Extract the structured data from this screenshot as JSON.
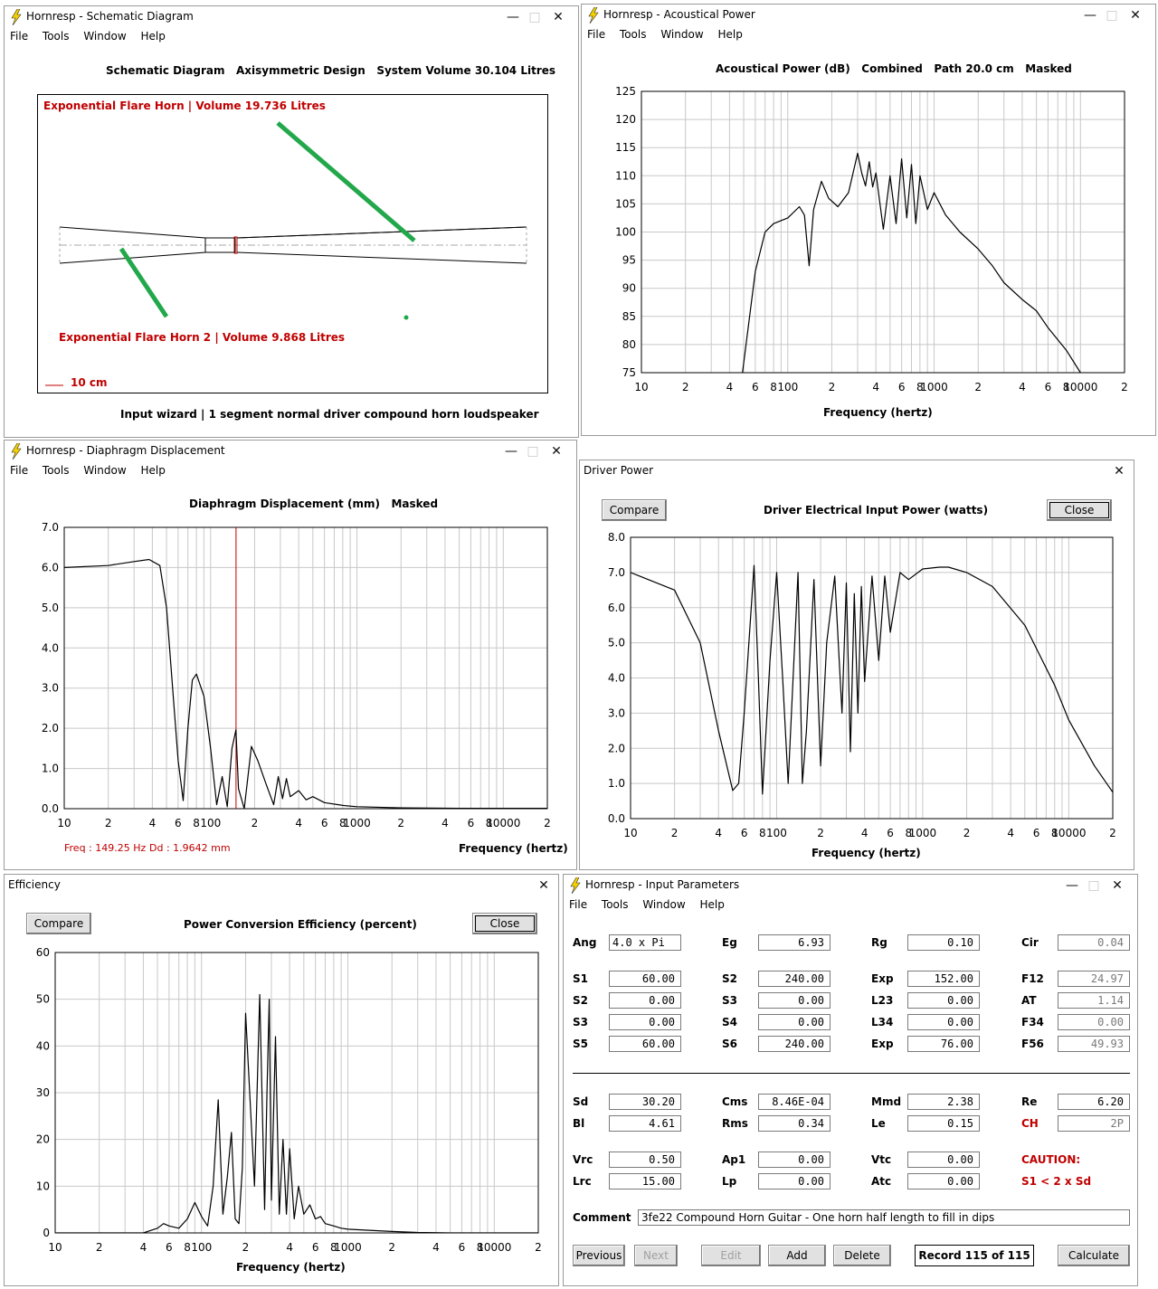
{
  "windows": {
    "schematic": {
      "title": "Hornresp - Schematic Diagram",
      "menu": [
        "File",
        "Tools",
        "Window",
        "Help"
      ],
      "heading": "Schematic Diagram   Axisymmetric Design   System Volume 30.104 Litres",
      "label_horn1": "Exponential Flare Horn | Volume 19.736 Litres",
      "label_horn2": "Exponential Flare Horn 2 | Volume 9.868 Litres",
      "scale_label": "10 cm",
      "footer": "Input wizard | 1 segment normal driver compound horn loudspeaker"
    },
    "acoustical": {
      "title": "Hornresp - Acoustical Power",
      "menu": [
        "File",
        "Tools",
        "Window",
        "Help"
      ],
      "heading": "Acoustical Power (dB)   Combined   Path 20.0 cm   Masked",
      "xlabel": "Frequency (hertz)"
    },
    "displacement": {
      "title": "Hornresp - Diaphragm Displacement",
      "menu": [
        "File",
        "Tools",
        "Window",
        "Help"
      ],
      "heading": "Diaphragm Displacement (mm)   Masked",
      "xlabel": "Frequency (hertz)",
      "cursor_freq": "Freq : 149.25 Hz",
      "cursor_dd": "Dd : 1.9642 mm"
    },
    "driver_power": {
      "title": "Driver Power",
      "compare": "Compare",
      "close": "Close",
      "heading": "Driver Electrical Input Power (watts)",
      "xlabel": "Frequency (hertz)"
    },
    "efficiency": {
      "title": "Efficiency",
      "compare": "Compare",
      "close": "Close",
      "heading": "Power Conversion Efficiency (percent)",
      "xlabel": "Frequency (hertz)"
    },
    "input": {
      "title": "Hornresp - Input Parameters",
      "menu": [
        "File",
        "Tools",
        "Window",
        "Help"
      ],
      "params": {
        "Ang": "4.0 x Pi",
        "Eg": "6.93",
        "Rg": "0.10",
        "Cir": "0.04",
        "S1": "60.00",
        "S2": "240.00",
        "Exp1": "152.00",
        "F12": "24.97",
        "S2b": "0.00",
        "S3": "0.00",
        "L23": "0.00",
        "AT": "1.14",
        "S3b": "0.00",
        "S4": "0.00",
        "L34": "0.00",
        "F34": "0.00",
        "S5": "60.00",
        "S6": "240.00",
        "Exp2": "76.00",
        "F56": "49.93",
        "Sd": "30.20",
        "Cms": "8.46E-04",
        "Mmd": "2.38",
        "Re": "6.20",
        "Bl": "4.61",
        "Rms": "0.34",
        "Le": "0.15",
        "CH": "2P",
        "Vrc": "0.50",
        "Ap1": "0.00",
        "Vtc": "0.00",
        "Lrc": "15.00",
        "Lp": "0.00",
        "Atc": "0.00"
      },
      "labels": {
        "Ang": "Ang",
        "Eg": "Eg",
        "Rg": "Rg",
        "Cir": "Cir",
        "S1": "S1",
        "S2": "S2",
        "Exp1": "Exp",
        "F12": "F12",
        "S2b": "S2",
        "S3": "S3",
        "L23": "L23",
        "AT": "AT",
        "S3b": "S3",
        "S4": "S4",
        "L34": "L34",
        "F34": "F34",
        "S5": "S5",
        "S6": "S6",
        "Exp2": "Exp",
        "F56": "F56",
        "Sd": "Sd",
        "Cms": "Cms",
        "Mmd": "Mmd",
        "Re": "Re",
        "Bl": "Bl",
        "Rms": "Rms",
        "Le": "Le",
        "CH": "CH",
        "Vrc": "Vrc",
        "Ap1": "Ap1",
        "Vtc": "Vtc",
        "Lrc": "Lrc",
        "Lp": "Lp",
        "Atc": "Atc"
      },
      "caution_title": "CAUTION:",
      "caution_text": "S1 < 2 x Sd",
      "comment_label": "Comment",
      "comment": "3fe22 Compound Horn Guitar - One horn half length to fill in dips",
      "buttons": {
        "previous": "Previous",
        "next": "Next",
        "edit": "Edit",
        "add": "Add",
        "delete": "Delete",
        "record": "Record 115 of 115",
        "calculate": "Calculate"
      }
    }
  },
  "freq_ticks": [
    "10",
    "2",
    "4",
    "6",
    "8",
    "100",
    "2",
    "4",
    "6",
    "8",
    "1000",
    "2",
    "4",
    "6",
    "8",
    "10000",
    "2"
  ],
  "colors": {
    "curve": "#000000",
    "grid": "#c8c8c8",
    "horn_label": "#c00000",
    "green": "#22a84a",
    "cursor": "#c00000"
  },
  "chart_data": [
    {
      "type": "line",
      "title": "Acoustical Power (dB)   Combined   Path 20.0 cm   Masked",
      "xlabel": "Frequency (hertz)",
      "xscale": "log",
      "xlim": [
        10,
        20000
      ],
      "ylim": [
        75,
        125
      ],
      "yticks": [
        "125",
        "120",
        "115",
        "110",
        "105",
        "100",
        "95",
        "90",
        "85",
        "80",
        "75"
      ],
      "x": [
        49,
        60,
        70,
        80,
        100,
        120,
        130,
        140,
        150,
        170,
        190,
        220,
        260,
        300,
        320,
        340,
        360,
        380,
        400,
        450,
        500,
        550,
        600,
        650,
        700,
        750,
        800,
        900,
        1000,
        1200,
        1500,
        2000,
        2500,
        3000,
        4000,
        5000,
        6000,
        8000,
        10000
      ],
      "y": [
        75,
        93,
        100,
        101.5,
        102.5,
        104.5,
        103,
        94,
        104,
        109,
        106,
        104.5,
        107,
        114,
        110.5,
        108.2,
        112.5,
        108,
        110.5,
        100.5,
        110,
        101.5,
        113,
        102.5,
        112,
        101.5,
        110,
        104,
        107,
        103,
        100,
        97,
        94,
        91,
        88,
        86,
        83,
        79,
        75
      ]
    },
    {
      "type": "line",
      "title": "Diaphragm Displacement (mm)   Masked",
      "xlabel": "Frequency (hertz)",
      "xscale": "log",
      "xlim": [
        10,
        20000
      ],
      "ylim": [
        0,
        7
      ],
      "yticks": [
        "7.0",
        "6.0",
        "5.0",
        "4.0",
        "3.0",
        "2.0",
        "1.0",
        "0.0"
      ],
      "x": [
        10,
        20,
        30,
        38,
        45,
        50,
        55,
        60,
        65,
        70,
        75,
        80,
        90,
        100,
        110,
        120,
        130,
        140,
        149,
        155,
        170,
        190,
        210,
        240,
        270,
        290,
        310,
        330,
        350,
        400,
        450,
        500,
        600,
        800,
        1000,
        2000,
        5000,
        10000,
        20000
      ],
      "y": [
        6.0,
        6.05,
        6.15,
        6.2,
        6.05,
        5.0,
        3.0,
        1.2,
        0.2,
        2.0,
        3.2,
        3.35,
        2.8,
        1.5,
        0.1,
        0.8,
        0.05,
        1.5,
        1.96,
        0.5,
        0.0,
        1.55,
        1.2,
        0.6,
        0.1,
        0.8,
        0.25,
        0.75,
        0.3,
        0.45,
        0.22,
        0.3,
        0.15,
        0.08,
        0.05,
        0.02,
        0.01,
        0.01,
        0.01
      ]
    },
    {
      "type": "line",
      "title": "Driver Electrical Input Power (watts)",
      "xlabel": "Frequency (hertz)",
      "xscale": "log",
      "xlim": [
        10,
        20000
      ],
      "ylim": [
        0,
        8
      ],
      "yticks": [
        "8.0",
        "7.0",
        "6.0",
        "5.0",
        "4.0",
        "3.0",
        "2.0",
        "1.0",
        "0.0"
      ],
      "x": [
        10,
        20,
        30,
        40,
        50,
        55,
        60,
        70,
        75,
        80,
        90,
        100,
        110,
        120,
        140,
        150,
        160,
        180,
        200,
        220,
        250,
        280,
        300,
        320,
        340,
        360,
        380,
        400,
        450,
        500,
        550,
        600,
        700,
        800,
        1000,
        1300,
        1500,
        2000,
        3000,
        5000,
        8000,
        10000,
        15000,
        20000
      ],
      "y": [
        7.0,
        6.5,
        5.0,
        2.5,
        0.8,
        1.0,
        3.0,
        7.2,
        4.0,
        0.7,
        4.5,
        7.0,
        4.0,
        1.0,
        7.0,
        1.0,
        2.5,
        6.8,
        1.5,
        5.0,
        6.9,
        3.0,
        6.7,
        1.9,
        6.4,
        3.0,
        6.6,
        3.9,
        6.9,
        4.5,
        6.9,
        5.3,
        7.0,
        6.8,
        7.1,
        7.15,
        7.15,
        7.0,
        6.6,
        5.5,
        3.8,
        2.8,
        1.5,
        0.75
      ]
    },
    {
      "type": "line",
      "title": "Power Conversion Efficiency (percent)",
      "xlabel": "Frequency (hertz)",
      "xscale": "log",
      "xlim": [
        10,
        20000
      ],
      "ylim": [
        0,
        60
      ],
      "yticks": [
        "60",
        "50",
        "40",
        "30",
        "20",
        "10",
        "0"
      ],
      "x": [
        10,
        40,
        50,
        55,
        60,
        70,
        80,
        90,
        100,
        110,
        120,
        130,
        140,
        150,
        160,
        170,
        180,
        190,
        200,
        230,
        250,
        270,
        280,
        290,
        300,
        320,
        340,
        360,
        380,
        400,
        430,
        460,
        500,
        550,
        600,
        650,
        700,
        800,
        900,
        1000,
        1500,
        2000,
        3000,
        5000,
        10000,
        20000
      ],
      "y": [
        0,
        0,
        1,
        2,
        1.5,
        1,
        3,
        6.5,
        3.5,
        1.5,
        10,
        28.5,
        4,
        12,
        21.5,
        3,
        2,
        14,
        47,
        10,
        51,
        5,
        30,
        50,
        7,
        42,
        4,
        20,
        4,
        18,
        3,
        10,
        4,
        6,
        3,
        3.5,
        2,
        1.5,
        1,
        0.8,
        0.5,
        0.3,
        0.1,
        0,
        0,
        0
      ]
    }
  ]
}
